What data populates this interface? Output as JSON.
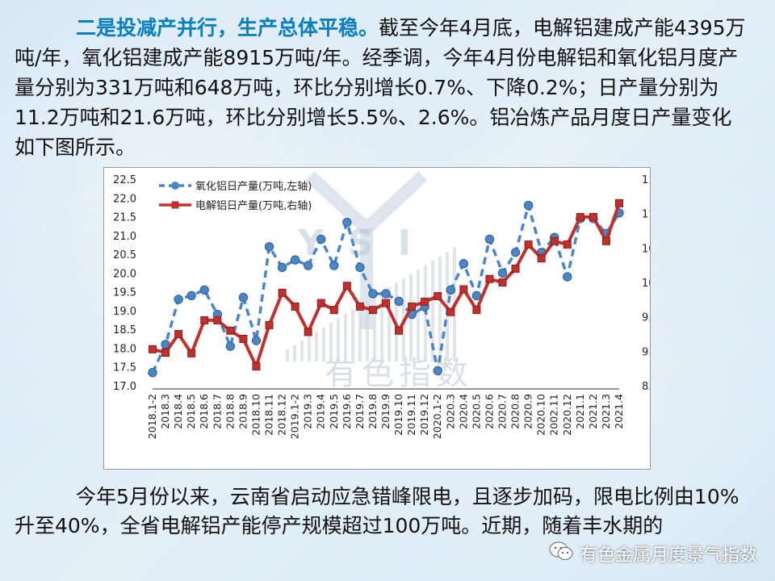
{
  "paragraph1": {
    "lead": "二是投减产并行，生产总体平稳。",
    "body": "截至今年4月底，电解铝建成产能4395万吨/年，氧化铝建成产能8915万吨/年。经季调，今年4月份电解铝和氧化铝月度产量分别为331万吨和648万吨，环比分别增长0.7%、下降0.2%；日产量分别为11.2万吨和21.6万吨，环比分别增长5.5%、2.6%。铝冶炼产品月度日产量变化如下图所示。"
  },
  "paragraph2": {
    "body": "今年5月份以来，云南省启动应急错峰限电，且逐步加码，限电比例由10%升至40%，全省电解铝产能停产规模超过100万吨。近期，随着丰水期的"
  },
  "watermark": {
    "text": "有色指数",
    "logo_letters": "YSI"
  },
  "footer": {
    "brand": "有色金属月度景气指数",
    "icon": "wechat-icon"
  },
  "colors": {
    "lead_text": "#0a7fc0",
    "alumina": "#4a86c6",
    "electrolytic": "#c0302e"
  },
  "chart_data": {
    "type": "line",
    "title": "",
    "categories": [
      "2018.1-2",
      "2018.3",
      "2018.4",
      "2018.5",
      "2018.6",
      "2018.7",
      "2018.8",
      "2018.9",
      "2018.10",
      "2018.11",
      "2018.12",
      "2019.1-2",
      "2019.3",
      "2019.4",
      "2019.5",
      "2019.6",
      "2019.7",
      "2019.8",
      "2019.9",
      "2019.10",
      "2019.11",
      "2019.12",
      "2020.1-2",
      "2020.3",
      "2020.4",
      "2020.5",
      "2020.6",
      "2020.7",
      "2020.8",
      "2020.9",
      "2020.10",
      "2002.11",
      "2020.12",
      "2021.1",
      "2021.2",
      "2021.3",
      "2021.4"
    ],
    "y_left": {
      "range": [
        17.0,
        22.5
      ],
      "ticks": [
        "17.0",
        "17.5",
        "18.0",
        "18.5",
        "19.0",
        "19.5",
        "20.0",
        "20.5",
        "21.0",
        "21.5",
        "22.0",
        "22.5"
      ]
    },
    "y_right": {
      "range": [
        8.5,
        11.5
      ],
      "ticks": [
        "8.5",
        "9.0",
        "9.5",
        "10.0",
        "10.5",
        "11.0",
        "11.5"
      ]
    },
    "legend_position": "top-left",
    "series": [
      {
        "name": "氧化铝日产量(万吨,左轴)",
        "axis": "left",
        "style": "dashed",
        "color": "#4a86c6",
        "values": [
          17.35,
          18.1,
          19.3,
          19.4,
          19.55,
          18.9,
          18.05,
          19.35,
          18.2,
          20.7,
          20.15,
          20.35,
          20.2,
          20.9,
          20.2,
          21.35,
          20.15,
          19.45,
          19.45,
          19.25,
          18.9,
          19.1,
          17.4,
          19.55,
          20.25,
          19.4,
          20.9,
          20.0,
          20.55,
          21.8,
          20.55,
          20.95,
          19.9,
          21.45,
          21.45,
          21.05,
          21.6
        ]
      },
      {
        "name": "电解铝日产量(万吨,右轴)",
        "axis": "right",
        "style": "solid",
        "color": "#c0302e",
        "values": [
          9.03,
          8.98,
          9.25,
          8.97,
          9.45,
          9.45,
          9.3,
          9.18,
          8.78,
          9.38,
          9.85,
          9.65,
          9.28,
          9.7,
          9.6,
          9.95,
          9.65,
          9.6,
          9.7,
          9.3,
          9.65,
          9.72,
          9.8,
          9.57,
          9.9,
          9.6,
          10.05,
          10.0,
          10.2,
          10.55,
          10.35,
          10.6,
          10.55,
          10.95,
          10.95,
          10.6,
          11.15
        ]
      }
    ]
  }
}
